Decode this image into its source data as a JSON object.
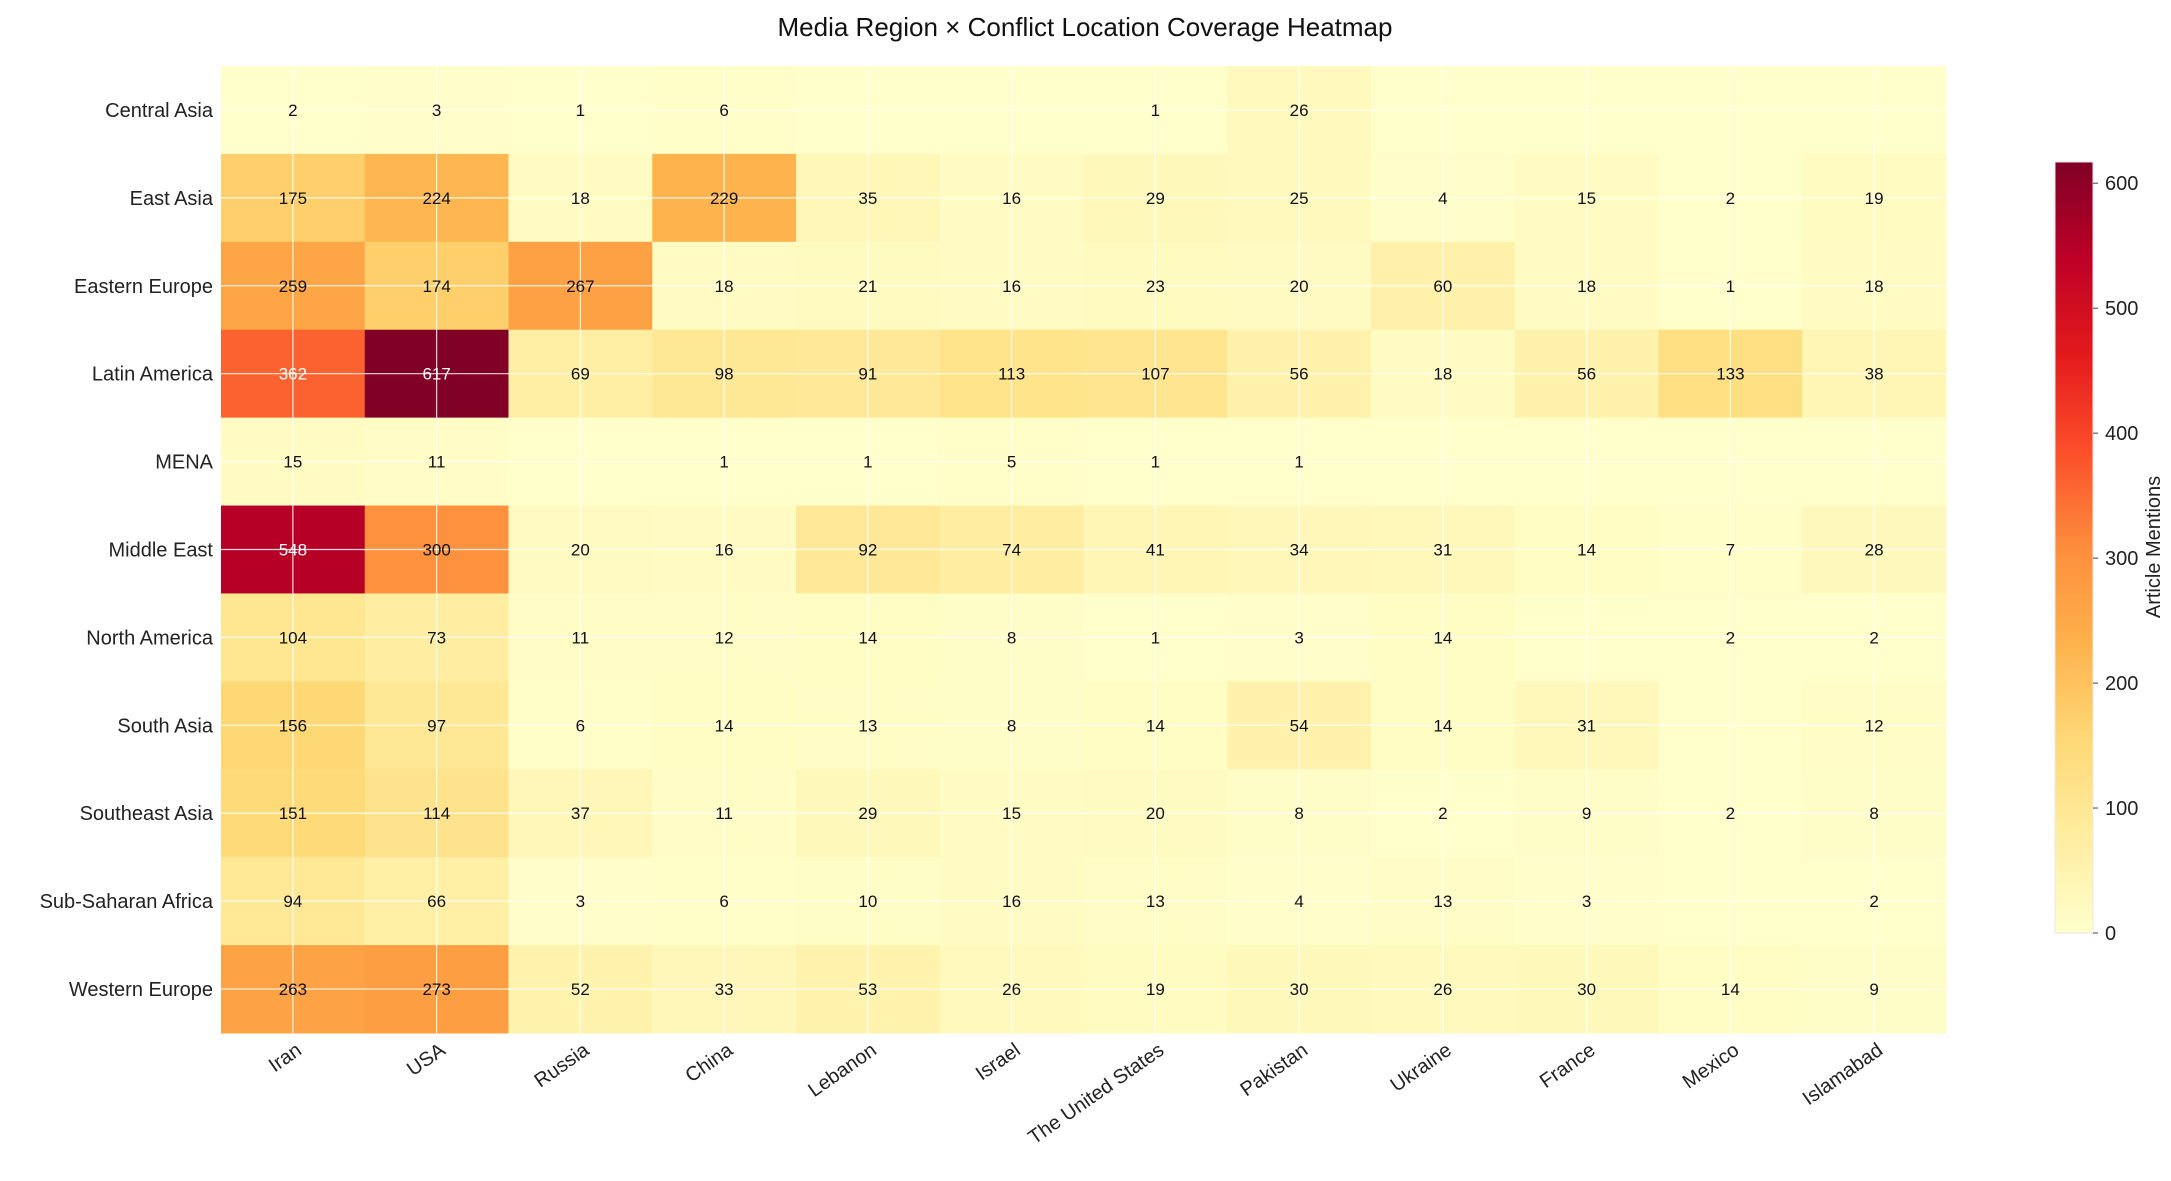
{
  "chart_data": {
    "type": "heatmap",
    "title": "Media Region × Conflict Location Coverage Heatmap",
    "xlabel": "",
    "ylabel": "",
    "x_categories": [
      "Iran",
      "USA",
      "Russia",
      "China",
      "Lebanon",
      "Israel",
      "The United States",
      "Pakistan",
      "Ukraine",
      "France",
      "Mexico",
      "Islamabad"
    ],
    "y_categories": [
      "Central Asia",
      "East Asia",
      "Eastern Europe",
      "Latin America",
      "MENA",
      "Middle East",
      "North America",
      "South Asia",
      "Southeast Asia",
      "Sub-Saharan Africa",
      "Western Europe"
    ],
    "values": [
      [
        2,
        3,
        1,
        6,
        null,
        null,
        1,
        26,
        null,
        null,
        null,
        null
      ],
      [
        175,
        224,
        18,
        229,
        35,
        16,
        29,
        25,
        4,
        15,
        2,
        19
      ],
      [
        259,
        174,
        267,
        18,
        21,
        16,
        23,
        20,
        60,
        18,
        1,
        18
      ],
      [
        362,
        617,
        69,
        98,
        91,
        113,
        107,
        56,
        18,
        56,
        133,
        38
      ],
      [
        15,
        11,
        null,
        1,
        1,
        5,
        1,
        1,
        null,
        null,
        null,
        null
      ],
      [
        548,
        300,
        20,
        16,
        92,
        74,
        41,
        34,
        31,
        14,
        7,
        28
      ],
      [
        104,
        73,
        11,
        12,
        14,
        8,
        1,
        3,
        14,
        null,
        2,
        2
      ],
      [
        156,
        97,
        6,
        14,
        13,
        8,
        14,
        54,
        14,
        31,
        null,
        12
      ],
      [
        151,
        114,
        37,
        11,
        29,
        15,
        20,
        8,
        2,
        9,
        2,
        8
      ],
      [
        94,
        66,
        3,
        6,
        10,
        16,
        13,
        4,
        13,
        3,
        null,
        2
      ],
      [
        263,
        273,
        52,
        33,
        53,
        26,
        19,
        30,
        26,
        30,
        14,
        9
      ]
    ],
    "colormap": "YlOrRd",
    "colorbar": {
      "label": "Article Mentions",
      "range": [
        0,
        617
      ],
      "ticks": [
        0,
        100,
        200,
        300,
        400,
        500,
        600
      ]
    },
    "grid": true,
    "legend": "colorbar-right"
  }
}
